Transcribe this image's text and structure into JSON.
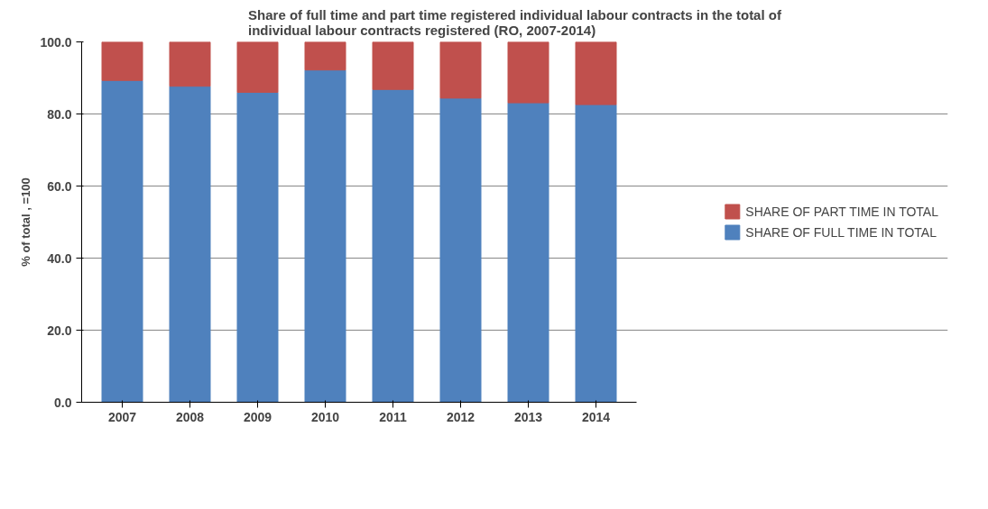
{
  "chart_data": {
    "type": "bar",
    "stacked": true,
    "title": "Share of full time and part time registered individual labour contracts in the total of individual labour contracts registered (RO, 2007-2014)",
    "ylabel": "% of total , =100",
    "categories": [
      "2007",
      "2008",
      "2009",
      "2010",
      "2011",
      "2012",
      "2013",
      "2014"
    ],
    "series": [
      {
        "name": "SHARE OF FULL TIME IN TOTAL",
        "color": "#4f81bd",
        "values": [
          89.3,
          87.7,
          86.0,
          92.2,
          86.8,
          84.4,
          83.1,
          82.6
        ]
      },
      {
        "name": "SHARE OF PART TIME IN TOTAL",
        "color": "#c0504d",
        "values": [
          10.7,
          12.3,
          14.0,
          7.8,
          13.2,
          15.6,
          16.9,
          17.4
        ]
      }
    ],
    "ylim": [
      0,
      100
    ],
    "yticks": [
      {
        "value": 0,
        "label": "0.0"
      },
      {
        "value": 20,
        "label": "20.0"
      },
      {
        "value": 40,
        "label": "40.0"
      },
      {
        "value": 60,
        "label": "60.0"
      },
      {
        "value": 80,
        "label": "80.0"
      },
      {
        "value": 100,
        "label": "100.0"
      }
    ],
    "grid": "y",
    "legend": "right"
  }
}
